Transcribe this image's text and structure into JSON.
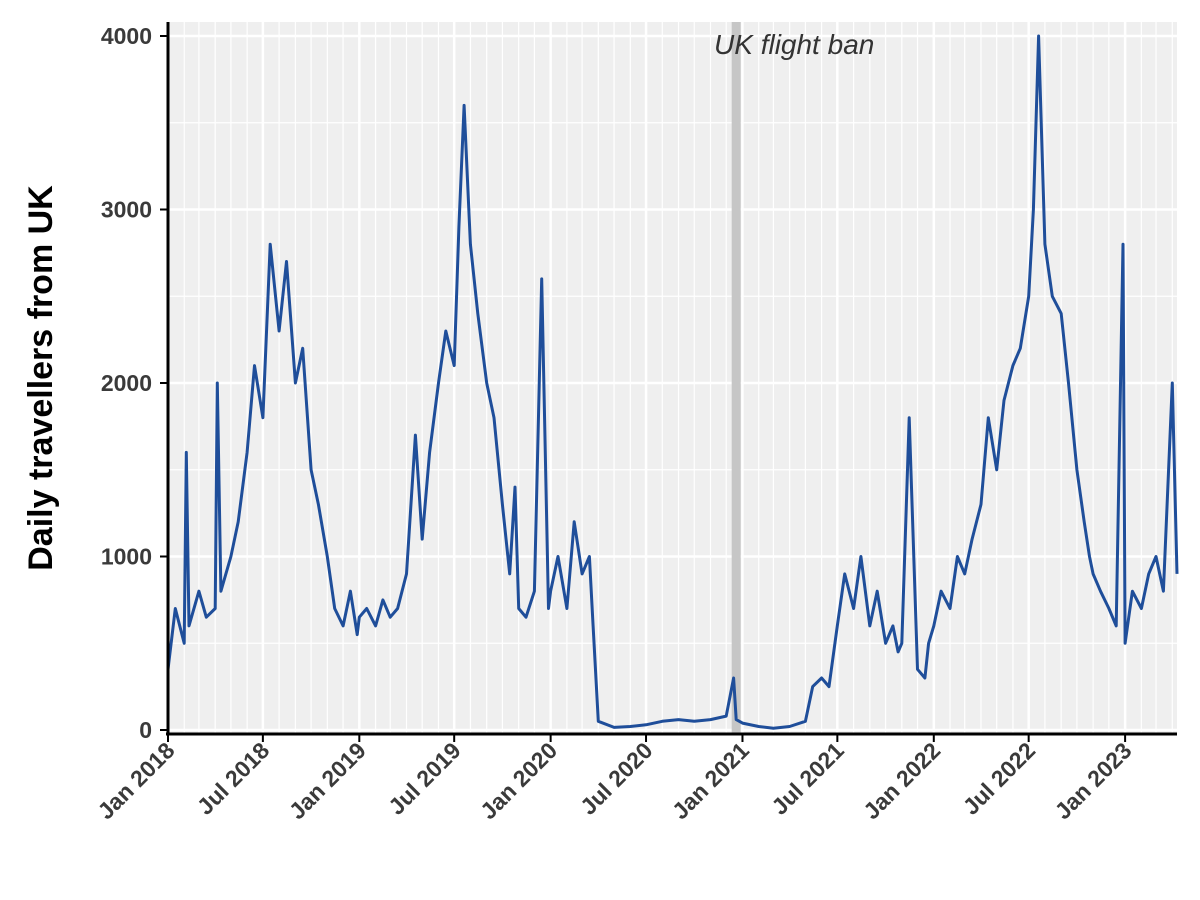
{
  "chart_data": {
    "type": "line",
    "title": "",
    "xlabel": "",
    "ylabel": "Daily travellers from UK",
    "x_range": [
      "2018-01-01",
      "2023-04-10"
    ],
    "ylim": [
      0,
      4000
    ],
    "y_ticks": [
      0,
      1000,
      2000,
      3000,
      4000
    ],
    "y_tick_labels": [
      "0",
      "1000",
      "2000",
      "3000",
      "4000"
    ],
    "x_ticks": [
      "2018-01-01",
      "2018-07-01",
      "2019-01-01",
      "2019-07-01",
      "2020-01-01",
      "2020-07-01",
      "2021-01-01",
      "2021-07-01",
      "2022-01-01",
      "2022-07-01",
      "2023-01-01"
    ],
    "x_tick_labels": [
      "Jan 2018",
      "Jul 2018",
      "Jan 2019",
      "Jul 2019",
      "Jan 2020",
      "Jul 2020",
      "Jan 2021",
      "Jul 2021",
      "Jan 2022",
      "Jul 2022",
      "Jan 2023"
    ],
    "grid": true,
    "line_color": "#1f4e9a",
    "panel_color": "#efefef",
    "annotation": {
      "label": "UK flight ban",
      "date": "2020-12-20",
      "band_color": "#c6c6c6"
    },
    "series": [
      {
        "x": [
          "2018-01-01",
          "2018-01-15",
          "2018-02-01",
          "2018-02-05",
          "2018-02-10",
          "2018-03-01",
          "2018-03-15",
          "2018-04-01",
          "2018-04-05",
          "2018-04-12",
          "2018-05-01",
          "2018-05-15",
          "2018-06-01",
          "2018-06-15",
          "2018-07-01",
          "2018-07-15",
          "2018-08-01",
          "2018-08-15",
          "2018-09-01",
          "2018-09-15",
          "2018-10-01",
          "2018-10-15",
          "2018-11-01",
          "2018-11-15",
          "2018-12-01",
          "2018-12-15",
          "2018-12-28",
          "2019-01-01",
          "2019-01-15",
          "2019-02-01",
          "2019-02-15",
          "2019-03-01",
          "2019-03-15",
          "2019-04-01",
          "2019-04-18",
          "2019-05-01",
          "2019-05-15",
          "2019-06-01",
          "2019-06-15",
          "2019-07-01",
          "2019-07-10",
          "2019-07-20",
          "2019-08-01",
          "2019-08-15",
          "2019-09-01",
          "2019-09-15",
          "2019-10-01",
          "2019-10-15",
          "2019-10-25",
          "2019-11-01",
          "2019-11-15",
          "2019-12-01",
          "2019-12-15",
          "2019-12-28",
          "2020-01-01",
          "2020-01-15",
          "2020-02-01",
          "2020-02-15",
          "2020-03-01",
          "2020-03-15",
          "2020-03-22",
          "2020-04-01",
          "2020-05-01",
          "2020-06-01",
          "2020-07-01",
          "2020-08-01",
          "2020-09-01",
          "2020-10-01",
          "2020-11-01",
          "2020-12-01",
          "2020-12-15",
          "2020-12-20",
          "2021-01-01",
          "2021-02-01",
          "2021-03-01",
          "2021-04-01",
          "2021-05-01",
          "2021-05-15",
          "2021-06-01",
          "2021-06-15",
          "2021-07-01",
          "2021-07-15",
          "2021-08-01",
          "2021-08-15",
          "2021-09-01",
          "2021-09-15",
          "2021-10-01",
          "2021-10-15",
          "2021-10-25",
          "2021-11-01",
          "2021-11-15",
          "2021-12-01",
          "2021-12-15",
          "2021-12-22",
          "2022-01-01",
          "2022-01-15",
          "2022-02-01",
          "2022-02-15",
          "2022-03-01",
          "2022-03-15",
          "2022-04-01",
          "2022-04-15",
          "2022-05-01",
          "2022-05-15",
          "2022-06-01",
          "2022-06-15",
          "2022-07-01",
          "2022-07-10",
          "2022-07-20",
          "2022-08-01",
          "2022-08-15",
          "2022-09-01",
          "2022-09-15",
          "2022-10-01",
          "2022-10-15",
          "2022-10-25",
          "2022-11-01",
          "2022-11-15",
          "2022-12-01",
          "2022-12-15",
          "2022-12-28",
          "2023-01-01",
          "2023-01-15",
          "2023-02-01",
          "2023-02-15",
          "2023-03-01",
          "2023-03-15",
          "2023-04-01",
          "2023-04-10"
        ],
        "y": [
          350,
          700,
          500,
          1600,
          600,
          800,
          650,
          700,
          2000,
          800,
          1000,
          1200,
          1600,
          2100,
          1800,
          2800,
          2300,
          2700,
          2000,
          2200,
          1500,
          1300,
          1000,
          700,
          600,
          800,
          550,
          650,
          700,
          600,
          750,
          650,
          700,
          900,
          1700,
          1100,
          1600,
          2000,
          2300,
          2100,
          2900,
          3600,
          2800,
          2400,
          2000,
          1800,
          1300,
          900,
          1400,
          700,
          650,
          800,
          2600,
          700,
          800,
          1000,
          700,
          1200,
          900,
          1000,
          600,
          50,
          15,
          20,
          30,
          50,
          60,
          50,
          60,
          80,
          300,
          60,
          40,
          20,
          10,
          20,
          50,
          250,
          300,
          250,
          600,
          900,
          700,
          1000,
          600,
          800,
          500,
          600,
          450,
          500,
          1800,
          350,
          300,
          500,
          600,
          800,
          700,
          1000,
          900,
          1100,
          1300,
          1800,
          1500,
          1900,
          2100,
          2200,
          2500,
          3000,
          4000,
          2800,
          2500,
          2400,
          2000,
          1500,
          1200,
          1000,
          900,
          800,
          700,
          600,
          2800,
          500,
          800,
          700,
          900,
          1000,
          800,
          2000,
          900
        ]
      }
    ]
  }
}
